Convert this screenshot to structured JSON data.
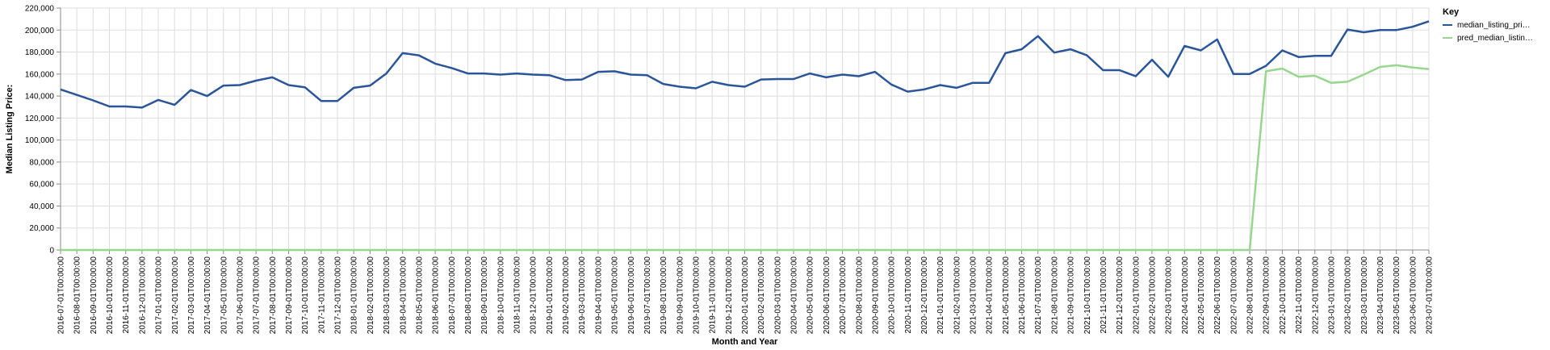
{
  "chart_data": {
    "type": "line",
    "xlabel": "Month and Year",
    "ylabel": "Median Listing Price:",
    "ylim": [
      0,
      220000
    ],
    "yticks": [
      "0",
      "20,000",
      "40,000",
      "60,000",
      "80,000",
      "100,000",
      "120,000",
      "140,000",
      "160,000",
      "180,000",
      "200,000",
      "220,000"
    ],
    "grid": true,
    "legend": {
      "title": "Key",
      "position": "top-right"
    },
    "x": [
      "2016-07-01T00:00:00",
      "2016-08-01T00:00:00",
      "2016-09-01T00:00:00",
      "2016-10-01T00:00:00",
      "2016-11-01T00:00:00",
      "2016-12-01T00:00:00",
      "2017-01-01T00:00:00",
      "2017-02-01T00:00:00",
      "2017-03-01T00:00:00",
      "2017-04-01T00:00:00",
      "2017-05-01T00:00:00",
      "2017-06-01T00:00:00",
      "2017-07-01T00:00:00",
      "2017-08-01T00:00:00",
      "2017-09-01T00:00:00",
      "2017-10-01T00:00:00",
      "2017-11-01T00:00:00",
      "2017-12-01T00:00:00",
      "2018-01-01T00:00:00",
      "2018-02-01T00:00:00",
      "2018-03-01T00:00:00",
      "2018-04-01T00:00:00",
      "2018-05-01T00:00:00",
      "2018-06-01T00:00:00",
      "2018-07-01T00:00:00",
      "2018-08-01T00:00:00",
      "2018-09-01T00:00:00",
      "2018-10-01T00:00:00",
      "2018-11-01T00:00:00",
      "2018-12-01T00:00:00",
      "2019-01-01T00:00:00",
      "2019-02-01T00:00:00",
      "2019-03-01T00:00:00",
      "2019-04-01T00:00:00",
      "2019-05-01T00:00:00",
      "2019-06-01T00:00:00",
      "2019-07-01T00:00:00",
      "2019-08-01T00:00:00",
      "2019-09-01T00:00:00",
      "2019-10-01T00:00:00",
      "2019-11-01T00:00:00",
      "2019-12-01T00:00:00",
      "2020-01-01T00:00:00",
      "2020-02-01T00:00:00",
      "2020-03-01T00:00:00",
      "2020-04-01T00:00:00",
      "2020-05-01T00:00:00",
      "2020-06-01T00:00:00",
      "2020-07-01T00:00:00",
      "2020-08-01T00:00:00",
      "2020-09-01T00:00:00",
      "2020-10-01T00:00:00",
      "2020-11-01T00:00:00",
      "2020-12-01T00:00:00",
      "2021-01-01T00:00:00",
      "2021-02-01T00:00:00",
      "2021-03-01T00:00:00",
      "2021-04-01T00:00:00",
      "2021-05-01T00:00:00",
      "2021-06-01T00:00:00",
      "2021-07-01T00:00:00",
      "2021-08-01T00:00:00",
      "2021-09-01T00:00:00",
      "2021-10-01T00:00:00",
      "2021-11-01T00:00:00",
      "2021-12-01T00:00:00",
      "2022-01-01T00:00:00",
      "2022-02-01T00:00:00",
      "2022-03-01T00:00:00",
      "2022-04-01T00:00:00",
      "2022-05-01T00:00:00",
      "2022-06-01T00:00:00",
      "2022-07-01T00:00:00",
      "2022-08-01T00:00:00",
      "2022-09-01T00:00:00",
      "2022-10-01T00:00:00",
      "2022-11-01T00:00:00",
      "2022-12-01T00:00:00",
      "2023-01-01T00:00:00",
      "2023-02-01T00:00:00",
      "2023-03-01T00:00:00",
      "2023-04-01T00:00:00",
      "2023-05-01T00:00:00",
      "2023-06-01T00:00:00",
      "2023-07-01T00:00:00"
    ],
    "series": [
      {
        "name": "median_listing_pri…",
        "color": "#2a5599",
        "values": [
          146000,
          141000,
          136000,
          130500,
          130500,
          129500,
          136500,
          132000,
          145500,
          140000,
          149500,
          150000,
          154000,
          157000,
          150000,
          148000,
          135500,
          135500,
          147500,
          149500,
          160500,
          179000,
          177000,
          169500,
          165500,
          160500,
          160500,
          159500,
          160500,
          159500,
          159000,
          154500,
          155000,
          162000,
          162500,
          159500,
          159000,
          151000,
          148500,
          147000,
          153000,
          150000,
          148500,
          155000,
          155500,
          155500,
          160500,
          157000,
          159500,
          158000,
          162000,
          150500,
          144000,
          146000,
          150000,
          147500,
          152000,
          152000,
          179000,
          182500,
          194500,
          179500,
          182500,
          177000,
          163500,
          163500,
          158000,
          173000,
          157500,
          185500,
          181500,
          191500,
          160000,
          160000,
          167500,
          181500,
          175500,
          176500,
          176500,
          200500,
          198000,
          200000,
          200000,
          203000,
          208000
        ]
      },
      {
        "name": "pred_median_listin…",
        "color": "#98d68f",
        "values": [
          0,
          0,
          0,
          0,
          0,
          0,
          0,
          0,
          0,
          0,
          0,
          0,
          0,
          0,
          0,
          0,
          0,
          0,
          0,
          0,
          0,
          0,
          0,
          0,
          0,
          0,
          0,
          0,
          0,
          0,
          0,
          0,
          0,
          0,
          0,
          0,
          0,
          0,
          0,
          0,
          0,
          0,
          0,
          0,
          0,
          0,
          0,
          0,
          0,
          0,
          0,
          0,
          0,
          0,
          0,
          0,
          0,
          0,
          0,
          0,
          0,
          0,
          0,
          0,
          0,
          0,
          0,
          0,
          0,
          0,
          0,
          0,
          0,
          0,
          162500,
          165000,
          157500,
          158500,
          152000,
          153000,
          159500,
          166500,
          168000,
          166000,
          164500
        ]
      }
    ]
  }
}
